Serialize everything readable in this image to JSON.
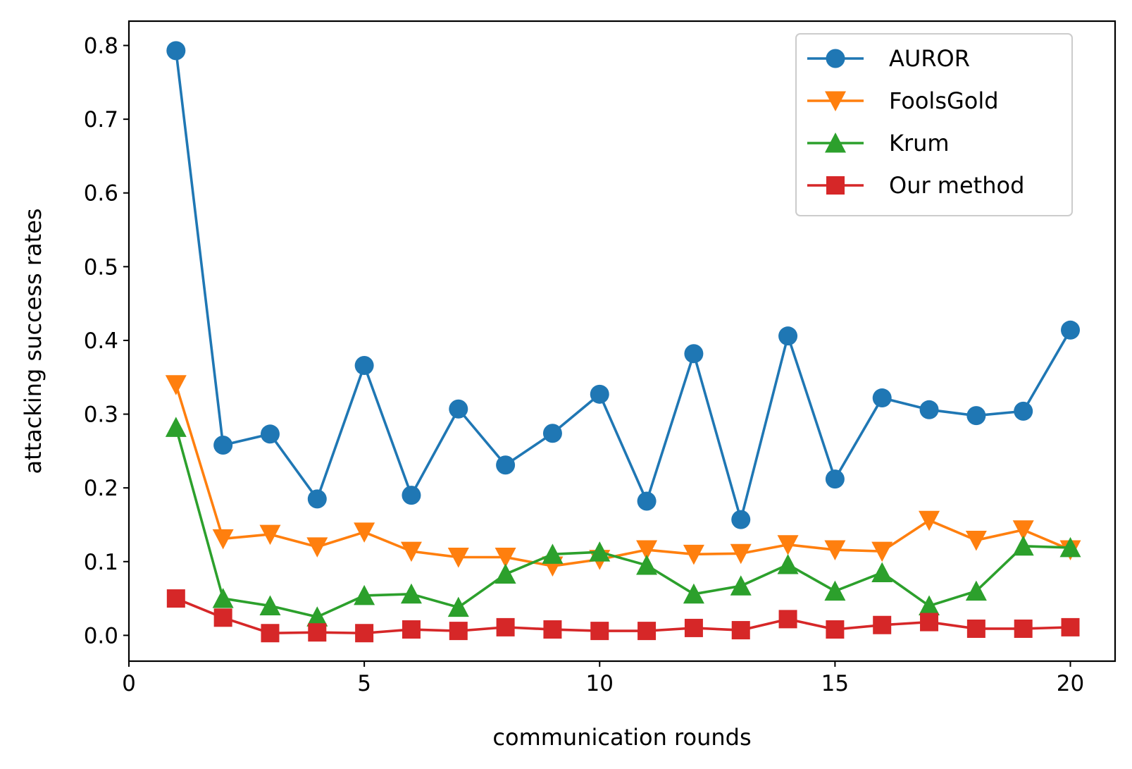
{
  "chart_data": {
    "type": "line",
    "title": "",
    "xlabel": "communication rounds",
    "ylabel": "attacking success rates",
    "xlim": [
      0,
      20.95
    ],
    "ylim": [
      -0.035,
      0.833
    ],
    "xticks": [
      0,
      5,
      10,
      15,
      20
    ],
    "yticks": [
      0.0,
      0.1,
      0.2,
      0.3,
      0.4,
      0.5,
      0.6,
      0.7,
      0.8
    ],
    "xtick_labels": [
      "0",
      "5",
      "10",
      "15",
      "20"
    ],
    "ytick_labels": [
      "0.0",
      "0.1",
      "0.2",
      "0.3",
      "0.4",
      "0.5",
      "0.6",
      "0.7",
      "0.8"
    ],
    "grid": false,
    "legend_position": "upper right",
    "x": [
      1,
      2,
      3,
      4,
      5,
      6,
      7,
      8,
      9,
      10,
      11,
      12,
      13,
      14,
      15,
      16,
      17,
      18,
      19,
      20
    ],
    "series": [
      {
        "name": "AUROR",
        "color": "#1f77b4",
        "marker": "circle",
        "values": [
          0.793,
          0.258,
          0.273,
          0.185,
          0.366,
          0.19,
          0.307,
          0.231,
          0.274,
          0.327,
          0.182,
          0.382,
          0.157,
          0.406,
          0.212,
          0.322,
          0.306,
          0.298,
          0.304,
          0.414
        ]
      },
      {
        "name": "FoolsGold",
        "color": "#ff7f0e",
        "marker": "triangle-down",
        "values": [
          0.34,
          0.131,
          0.137,
          0.12,
          0.14,
          0.114,
          0.106,
          0.106,
          0.094,
          0.103,
          0.116,
          0.11,
          0.111,
          0.123,
          0.116,
          0.114,
          0.156,
          0.129,
          0.143,
          0.116
        ]
      },
      {
        "name": "Krum",
        "color": "#2ca02c",
        "marker": "triangle-up",
        "values": [
          0.282,
          0.05,
          0.04,
          0.025,
          0.054,
          0.056,
          0.038,
          0.083,
          0.11,
          0.113,
          0.095,
          0.056,
          0.067,
          0.096,
          0.06,
          0.085,
          0.04,
          0.06,
          0.121,
          0.119
        ]
      },
      {
        "name": "Our method",
        "color": "#d62728",
        "marker": "square",
        "values": [
          0.05,
          0.024,
          0.003,
          0.004,
          0.003,
          0.008,
          0.006,
          0.011,
          0.008,
          0.006,
          0.006,
          0.01,
          0.007,
          0.022,
          0.008,
          0.014,
          0.018,
          0.009,
          0.009,
          0.011
        ]
      }
    ]
  }
}
